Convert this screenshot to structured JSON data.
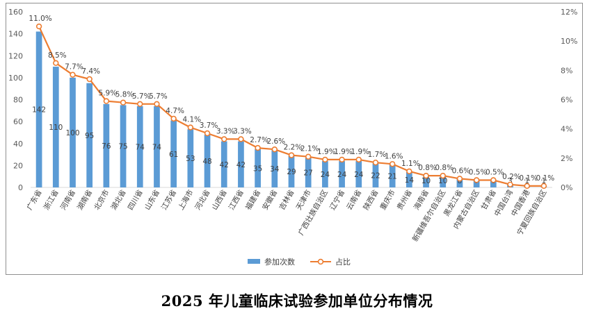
{
  "caption": "2025 年儿童临床试验参加单位分布情况",
  "chart_data": {
    "type": "bar+line",
    "categories": [
      "广东省",
      "浙江省",
      "河南省",
      "湖南省",
      "北京市",
      "湖北省",
      "四川省",
      "山东省",
      "江苏省",
      "上海市",
      "河北省",
      "山西省",
      "江西省",
      "福建省",
      "安徽省",
      "吉林省",
      "天津市",
      "广西壮族自治区",
      "辽宁省",
      "云南省",
      "陕西省",
      "重庆市",
      "贵州省",
      "海南省",
      "新疆维吾尔自治区",
      "黑龙江省",
      "内蒙古自治区",
      "甘肃省",
      "中国台湾",
      "中国香港",
      "宁夏回族自治区"
    ],
    "series": [
      {
        "name": "参加次数",
        "type": "bar",
        "axis": "left",
        "color": "#5B9BD5",
        "values": [
          142,
          110,
          100,
          95,
          76,
          75,
          74,
          74,
          61,
          53,
          48,
          42,
          42,
          35,
          34,
          29,
          27,
          24,
          24,
          24,
          22,
          21,
          14,
          10,
          10,
          8,
          7,
          6,
          3,
          1,
          1
        ],
        "labels": [
          "142",
          "110",
          "100",
          "95",
          "76",
          "75",
          "74",
          "74",
          "61",
          "53",
          "48",
          "42",
          "42",
          "35",
          "34",
          "29",
          "27",
          "24",
          "24",
          "24",
          "22",
          "21",
          "14",
          "10",
          "10",
          "8",
          "7",
          "6",
          "3",
          "1",
          "1"
        ]
      },
      {
        "name": "占比",
        "type": "line",
        "axis": "right",
        "color": "#ED7D31",
        "values": [
          11.0,
          8.5,
          7.7,
          7.4,
          5.9,
          5.8,
          5.7,
          5.7,
          4.7,
          4.1,
          3.7,
          3.3,
          3.3,
          2.7,
          2.6,
          2.2,
          2.1,
          1.9,
          1.9,
          1.9,
          1.7,
          1.6,
          1.1,
          0.8,
          0.8,
          0.6,
          0.5,
          0.5,
          0.2,
          0.1,
          0.1
        ],
        "labels": [
          "11.0%",
          "8.5%",
          "7.7%",
          "7.4%",
          "5.9%",
          "5.8%",
          "5.7%",
          "5.7%",
          "4.7%",
          "4.1%",
          "3.7%",
          "3.3%",
          "3.3%",
          "2.7%",
          "2.6%",
          "2.2%",
          "2.1%",
          "1.9%",
          "1.9%",
          "1.9%",
          "1.7%",
          "1.6%",
          "1.1%",
          "0.8%",
          "0.8%",
          "0.6%",
          "0.5%",
          "0.5%",
          "0.2%",
          "0.1%",
          "0.1%"
        ]
      }
    ],
    "y_left": {
      "range": [
        0,
        160
      ],
      "ticks": [
        "0",
        "20",
        "40",
        "60",
        "80",
        "100",
        "120",
        "140",
        "160"
      ]
    },
    "y_right": {
      "range": [
        0,
        12
      ],
      "ticks": [
        "0%",
        "2%",
        "4%",
        "6%",
        "8%",
        "10%",
        "12%"
      ]
    },
    "legend": {
      "position": "bottom",
      "items": [
        "参加次数",
        "占比"
      ]
    }
  }
}
